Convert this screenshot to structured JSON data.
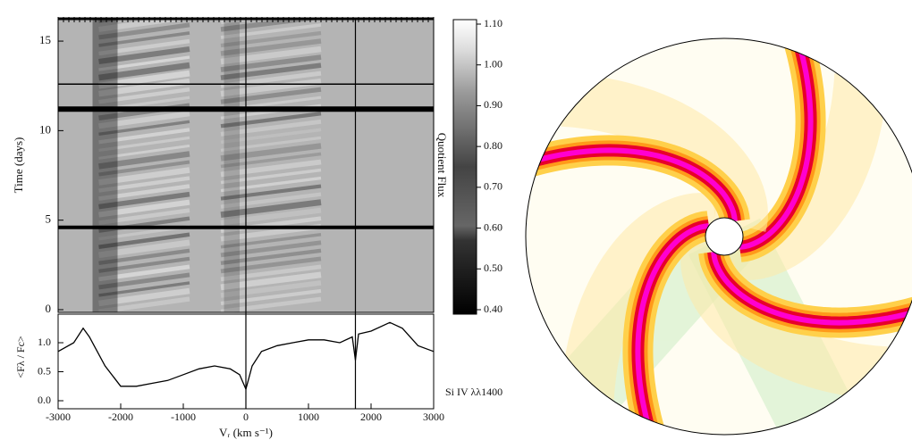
{
  "chart_data": [
    {
      "type": "heatmap",
      "ylabel": "Time (days)",
      "xlim": [
        -3000,
        3000
      ],
      "ylim": [
        0,
        16
      ],
      "yticks": [
        0,
        5,
        10,
        15
      ],
      "hlines": [
        12.6,
        11.2,
        4.6
      ],
      "vlines": [
        0,
        1750
      ],
      "colorbar": {
        "label": "Quotient Flux",
        "lim": [
          0.4,
          1.1
        ],
        "ticks": [
          {
            "value": 1.1,
            "label": "1.10"
          },
          {
            "value": 1.0,
            "label": "1.00"
          },
          {
            "value": 0.9,
            "label": "0.90"
          },
          {
            "value": 0.8,
            "label": "0.80"
          },
          {
            "value": 0.7,
            "label": "0.70"
          },
          {
            "value": 0.6,
            "label": "0.60"
          },
          {
            "value": 0.5,
            "label": "0.50"
          },
          {
            "value": 0.4,
            "label": "0.40"
          }
        ]
      }
    },
    {
      "type": "line",
      "ylabel": "<Fλ / Fc>",
      "xlabel": "Vᵣ (km s⁻¹)",
      "annotation": "Si IV λλ1400",
      "color": "#000",
      "x": [
        -3000,
        -2750,
        -2600,
        -2500,
        -2250,
        -2000,
        -1750,
        -1500,
        -1250,
        -1000,
        -750,
        -500,
        -250,
        -100,
        0,
        100,
        250,
        500,
        750,
        1000,
        1250,
        1500,
        1700,
        1750,
        1800,
        2000,
        2300,
        2500,
        2750,
        3000
      ],
      "values": [
        0.85,
        1.0,
        1.25,
        1.1,
        0.6,
        0.25,
        0.25,
        0.3,
        0.35,
        0.45,
        0.55,
        0.6,
        0.55,
        0.45,
        0.2,
        0.6,
        0.85,
        0.95,
        1.0,
        1.05,
        1.05,
        1.0,
        1.1,
        0.7,
        1.15,
        1.2,
        1.35,
        1.25,
        0.95,
        0.85
      ],
      "xlim": [
        -3000,
        3000
      ],
      "xticks": [
        -3000,
        -2000,
        -1000,
        0,
        1000,
        2000,
        3000
      ],
      "ylim": [
        0,
        1.5
      ],
      "yticks": [
        {
          "value": 0,
          "label": "0.0"
        },
        {
          "value": 0.5,
          "label": "0.5"
        },
        {
          "value": 1,
          "label": "1.0"
        }
      ]
    }
  ]
}
